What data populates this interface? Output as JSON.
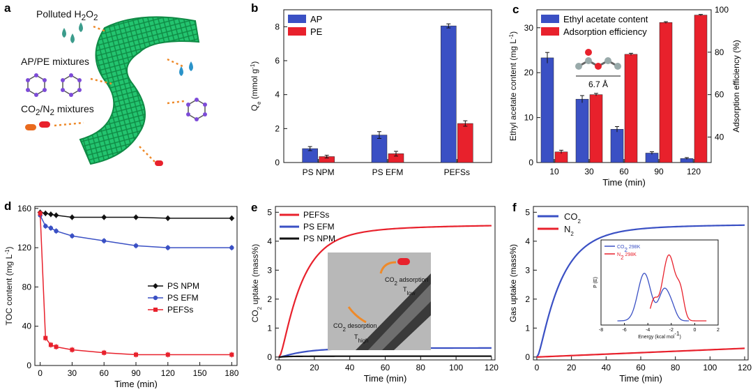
{
  "panel_labels": {
    "a": "a",
    "b": "b",
    "c": "c",
    "d": "d",
    "e": "e",
    "f": "f"
  },
  "colors": {
    "blue": "#3a50c4",
    "red": "#e8212c",
    "black": "#111111",
    "green": "#1fb86a",
    "drop": "#3c9c8c"
  },
  "schematic": {
    "polluted": "Polluted H",
    "polluted_sub2": "2",
    "polluted_o": "O",
    "ap_pe": "AP/PE mixtures",
    "co2n2_pre": "CO",
    "co2n2_sub": "2",
    "co2n2_mid": "/N",
    "co2n2_sub2": "2",
    "co2n2_post": " mixtures"
  },
  "chart_data": [
    {
      "id": "b",
      "type": "bar",
      "categories": [
        "PS NPM",
        "PS EFM",
        "PEFSs"
      ],
      "series": [
        {
          "name": "AP",
          "values": [
            0.82,
            1.62,
            8.05
          ],
          "errors": [
            0.12,
            0.2,
            0.12
          ]
        },
        {
          "name": "PE",
          "values": [
            0.35,
            0.52,
            2.3
          ],
          "errors": [
            0.08,
            0.14,
            0.16
          ]
        }
      ],
      "ylabel_main": "Q",
      "ylabel_sub": "e",
      "ylabel_unit": " (mmol g",
      "ylabel_sup": "-1",
      "ylabel_close": ")",
      "ylim": [
        0,
        9
      ],
      "yticks": [
        0,
        2,
        4,
        6,
        8
      ],
      "legend": "top-left"
    },
    {
      "id": "c",
      "type": "bar",
      "categories": [
        "10",
        "30",
        "60",
        "90",
        "120"
      ],
      "xlabel": "Time (min)",
      "series": [
        {
          "name": "Ethyl acetate content",
          "axis": "left",
          "values": [
            23.3,
            14.1,
            7.4,
            2.1,
            0.9
          ],
          "errors": [
            1.2,
            0.8,
            0.6,
            0.3,
            0.2
          ]
        },
        {
          "name": "Adsorption efficiency",
          "axis": "right",
          "values": [
            33,
            60,
            79,
            94,
            97.5
          ],
          "errors": [
            0.8,
            0.6,
            0.5,
            0.4,
            0.3
          ]
        }
      ],
      "ylabel_left_main": "Ethyl acetate content (mg L",
      "ylabel_left_sup": "-1",
      "ylabel_left_close": ")",
      "ylabel_right": "Adsorption efficiency (%)",
      "ylim_left": [
        0,
        34
      ],
      "yticks_left": [
        0,
        10,
        20,
        30
      ],
      "ylim_right": [
        28,
        100
      ],
      "yticks_right": [
        40,
        60,
        80,
        100
      ],
      "annotation": "6.7 Å"
    },
    {
      "id": "d",
      "type": "line",
      "xlabel": "Time (min)",
      "ylabel_main": "TOC content (mg L",
      "ylabel_sup": "-1",
      "ylabel_close": ")",
      "xlim": [
        -5,
        185
      ],
      "ylim": [
        0,
        162
      ],
      "xticks": [
        0,
        30,
        60,
        90,
        120,
        150,
        180
      ],
      "yticks": [
        0,
        40,
        80,
        120,
        160
      ],
      "legend": "center-right",
      "series": [
        {
          "name": "PS NPM",
          "marker": "diamond",
          "x": [
            0,
            5,
            10,
            15,
            30,
            60,
            90,
            120,
            180
          ],
          "y": [
            156,
            155,
            154,
            153,
            151,
            151,
            151,
            150,
            150
          ]
        },
        {
          "name": "PS EFM",
          "marker": "circle",
          "x": [
            0,
            5,
            10,
            15,
            30,
            60,
            90,
            120,
            180
          ],
          "y": [
            153,
            142,
            140,
            137,
            132,
            127,
            122,
            120,
            120
          ]
        },
        {
          "name": "PEFSs",
          "marker": "square",
          "x": [
            0,
            5,
            10,
            15,
            30,
            60,
            90,
            120,
            180
          ],
          "y": [
            155,
            28,
            21,
            19,
            16,
            13,
            11,
            11,
            11
          ]
        }
      ]
    },
    {
      "id": "e",
      "type": "line",
      "xlabel": "Time (min)",
      "ylabel_pre": "CO",
      "ylabel_sub": "2",
      "ylabel_post": " uptake (mass%)",
      "xlim": [
        -2,
        122
      ],
      "ylim": [
        -0.1,
        5.2
      ],
      "xticks": [
        0,
        20,
        40,
        60,
        80,
        100,
        120
      ],
      "yticks": [
        0,
        1,
        2,
        3,
        4,
        5
      ],
      "legend": "top-left",
      "series": [
        {
          "name": "PEFSs",
          "final": 4.65,
          "k": 0.09
        },
        {
          "name": "PS EFM",
          "final": 0.32,
          "k": 0.08
        },
        {
          "name": "PS NPM",
          "final": 0.03,
          "k": 0.5
        }
      ],
      "inset_labels": {
        "adsorption_pre": "CO",
        "adsorption_sub": "2",
        "adsorption_post": " adsorption",
        "adsorption_t": "T",
        "adsorption_t_sub": "low",
        "desorption_pre": "CO",
        "desorption_sub": "2",
        "desorption_post": " desorption",
        "desorption_t": "T",
        "desorption_t_sub": "high"
      }
    },
    {
      "id": "f",
      "type": "line",
      "xlabel": "Time (min)",
      "ylabel": "Gas uptake (mass%)",
      "xlim": [
        -2,
        122
      ],
      "ylim": [
        -0.1,
        5.2
      ],
      "xticks": [
        0,
        20,
        40,
        60,
        80,
        100,
        120
      ],
      "yticks": [
        0,
        1,
        2,
        3,
        4,
        5
      ],
      "legend": "top-left",
      "series": [
        {
          "name_pre": "CO",
          "name_sub": "2",
          "final": 4.65,
          "k": 0.08
        },
        {
          "name_pre": "N",
          "name_sub": "2",
          "final": 0.3,
          "k": 0.0
        }
      ],
      "inset": {
        "xlabel_main": "Energy (kcal mol",
        "xlabel_sup": "-1",
        "xlabel_close": ")",
        "ylabel": "P (E)",
        "xticks": [
          -8,
          -6,
          -4,
          -2,
          0,
          2
        ],
        "xlim": [
          -8,
          2
        ],
        "legend": [
          {
            "pre": "CO",
            "sub": "2",
            "post": " 298K"
          },
          {
            "pre": "N",
            "sub": "2",
            "post": " 298K"
          }
        ],
        "co2_peaks": [
          {
            "mu": -4.3,
            "s": 0.55,
            "a": 1.0
          },
          {
            "mu": -2.6,
            "s": 0.45,
            "a": 0.65
          },
          {
            "mu": -1.9,
            "s": 0.35,
            "a": 0.2
          }
        ],
        "n2_peaks": [
          {
            "mu": -2.2,
            "s": 0.55,
            "a": 1.0
          },
          {
            "mu": -3.5,
            "s": 0.3,
            "a": 0.28
          },
          {
            "mu": -1.2,
            "s": 0.3,
            "a": 0.35
          }
        ]
      }
    }
  ]
}
